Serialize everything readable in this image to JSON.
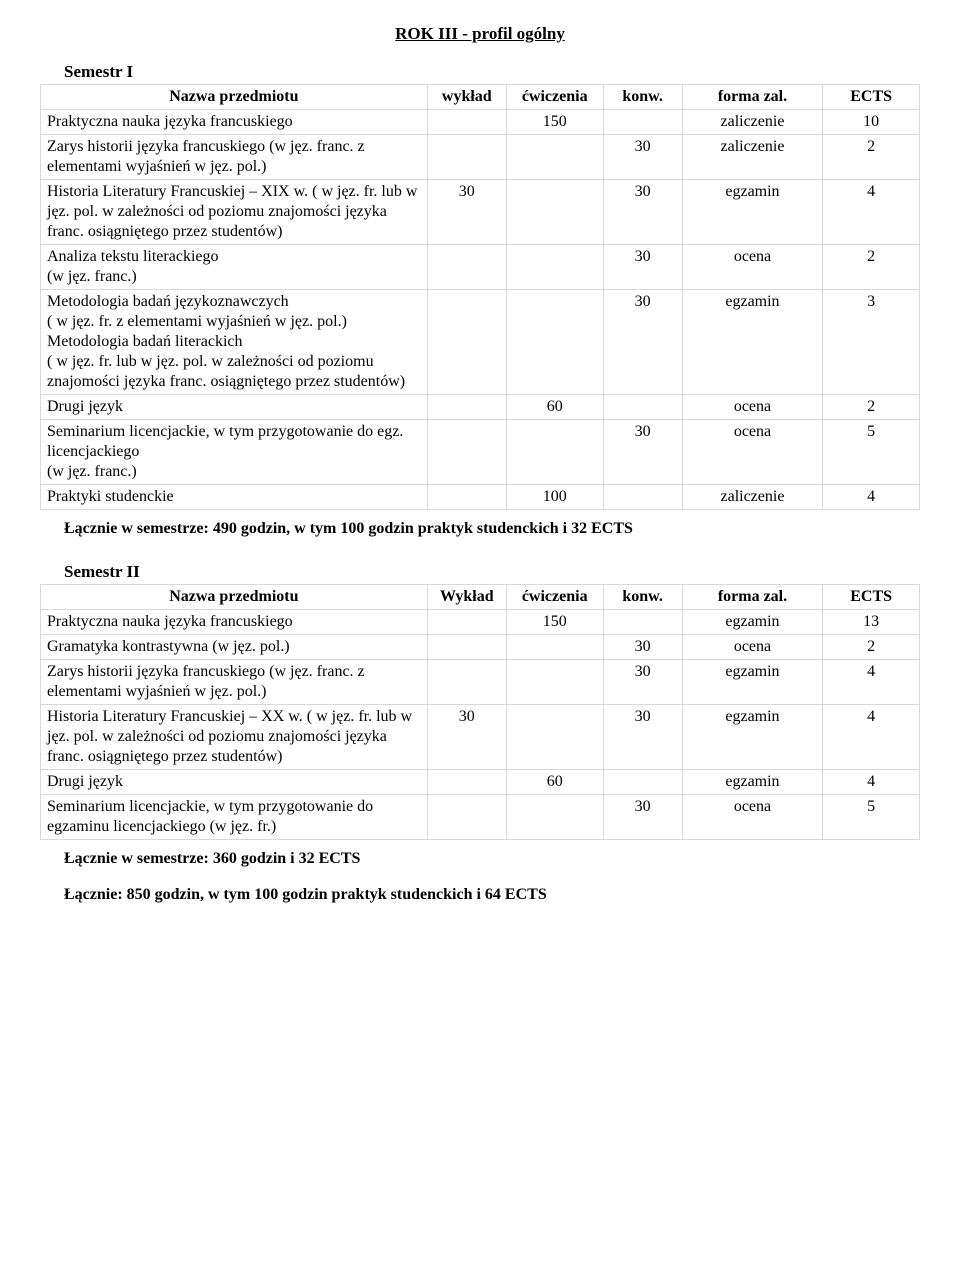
{
  "title": "ROK  III  -   profil ogólny",
  "sem1": {
    "heading": "Semestr I",
    "headers": {
      "name": "Nazwa przedmiotu",
      "wyklad": "wykład",
      "cwiczenia": "ćwiczenia",
      "konw": "konw.",
      "forma": "forma zal.",
      "ects": "ECTS"
    },
    "rows": [
      {
        "name": "Praktyczna nauka języka francuskiego",
        "wyklad": "",
        "cwiczenia": "150",
        "konw": "",
        "forma": "zaliczenie",
        "ects": "10"
      },
      {
        "name": "Zarys historii języka francuskiego (w jęz. franc. z elementami wyjaśnień w jęz. pol.)",
        "wyklad": "",
        "cwiczenia": "",
        "konw": "30",
        "forma": "zaliczenie",
        "ects": "2"
      },
      {
        "name": "Historia Literatury Francuskiej – XIX w. ( w jęz. fr. lub w jęz. pol. w zależności od poziomu znajomości języka franc. osiągniętego przez studentów)",
        "wyklad": "30",
        "cwiczenia": "",
        "konw": "30",
        "forma": "egzamin",
        "ects": "4"
      },
      {
        "name": "Analiza tekstu literackiego\n(w jęz. franc.)",
        "wyklad": "",
        "cwiczenia": "",
        "konw": "30",
        "forma": "ocena",
        "ects": "2"
      },
      {
        "name": "Metodologia badań językoznawczych\n( w jęz. fr. z elementami wyjaśnień w jęz. pol.)\nMetodologia badań literackich\n( w jęz. fr. lub w jęz. pol. w zależności od poziomu znajomości języka franc. osiągniętego przez studentów)",
        "wyklad": "",
        "cwiczenia": "",
        "konw": "30",
        "forma": "egzamin",
        "ects": "3"
      },
      {
        "name": "Drugi język",
        "wyklad": "",
        "cwiczenia": "60",
        "konw": "",
        "forma": "ocena",
        "ects": "2"
      },
      {
        "name": "Seminarium licencjackie, w tym przygotowanie do egz. licencjackiego\n(w jęz. franc.)",
        "wyklad": "",
        "cwiczenia": "",
        "konw": "30",
        "forma": "ocena",
        "ects": "5"
      },
      {
        "name": "Praktyki studenckie",
        "wyklad": "",
        "cwiczenia": "100",
        "konw": "",
        "forma": "zaliczenie",
        "ects": "4"
      }
    ],
    "summary": "Łącznie w semestrze:  490 godzin, w tym 100 godzin praktyk studenckich  i  32 ECTS"
  },
  "sem2": {
    "heading": "Semestr II",
    "headers": {
      "name": "Nazwa przedmiotu",
      "wyklad": "Wykład",
      "cwiczenia": "ćwiczenia",
      "konw": "konw.",
      "forma": "forma zal.",
      "ects": "ECTS"
    },
    "rows": [
      {
        "name": "Praktyczna nauka języka francuskiego",
        "wyklad": "",
        "cwiczenia": "150",
        "konw": "",
        "forma": "egzamin",
        "ects": "13"
      },
      {
        "name": "Gramatyka kontrastywna (w jęz. pol.)",
        "wyklad": "",
        "cwiczenia": "",
        "konw": "30",
        "forma": "ocena",
        "ects": "2"
      },
      {
        "name": "Zarys historii języka francuskiego (w jęz. franc. z elementami wyjaśnień w jęz. pol.)",
        "wyklad": "",
        "cwiczenia": "",
        "konw": "30",
        "forma": "egzamin",
        "ects": "4"
      },
      {
        "name": "Historia Literatury Francuskiej – XX w. ( w jęz. fr. lub w jęz. pol. w zależności od poziomu znajomości języka franc. osiągniętego przez studentów)",
        "wyklad": "30",
        "cwiczenia": "",
        "konw": "30",
        "forma": "egzamin",
        "ects": "4"
      },
      {
        "name": "Drugi język",
        "wyklad": "",
        "cwiczenia": "60",
        "konw": "",
        "forma": "egzamin",
        "ects": "4"
      },
      {
        "name": "Seminarium licencjackie, w tym przygotowanie do egzaminu licencjackiego (w jęz. fr.)",
        "wyklad": "",
        "cwiczenia": "",
        "konw": "30",
        "forma": "ocena",
        "ects": "5"
      }
    ],
    "summary": "Łącznie w semestrze:  360 godzin  i   32 ECTS"
  },
  "grand_summary": "Łącznie:  850 godzin, w tym 100 godzin praktyk studenckich  i  64 ECTS"
}
